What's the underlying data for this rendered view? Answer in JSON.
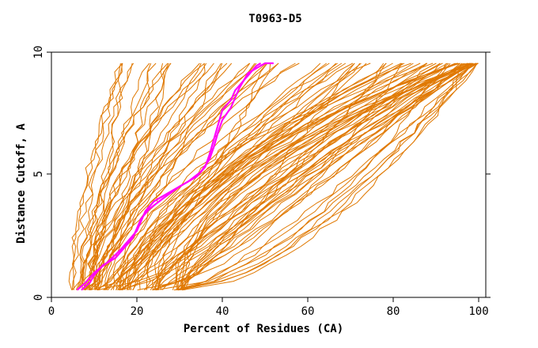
{
  "chart_data": {
    "type": "line",
    "title": "T0963-D5",
    "xlabel": "Percent of Residues (CA)",
    "ylabel": "Distance Cutoff, A",
    "xlim": [
      0,
      102
    ],
    "ylim": [
      0,
      10
    ],
    "xticks": [
      0,
      20,
      40,
      60,
      80,
      100
    ],
    "yticks": [
      0,
      5,
      10
    ],
    "grid": false,
    "colors": {
      "background_curves": "#e07800",
      "highlight": "#ff00ff"
    },
    "highlight_series": [
      {
        "x": [
          7,
          9,
          10,
          12,
          15,
          17,
          19,
          20,
          21,
          23,
          26,
          30,
          34,
          36,
          37,
          38,
          39,
          40,
          42,
          43,
          45,
          46,
          48,
          50,
          52
        ],
        "y": [
          0.3,
          0.6,
          0.9,
          1.3,
          1.6,
          2.0,
          2.4,
          2.8,
          3.2,
          3.6,
          4.0,
          4.5,
          4.9,
          5.3,
          5.8,
          6.4,
          7.0,
          7.6,
          8.0,
          8.4,
          8.8,
          9.1,
          9.3,
          9.5,
          9.5
        ]
      },
      {
        "x": [
          6,
          8,
          10,
          13,
          16,
          18,
          20,
          21,
          22,
          24,
          28,
          32,
          35,
          37,
          38,
          39,
          40,
          42,
          43,
          44,
          45,
          46,
          47,
          48,
          49
        ],
        "y": [
          0.3,
          0.6,
          1.0,
          1.4,
          1.9,
          2.3,
          2.7,
          3.1,
          3.5,
          3.9,
          4.3,
          4.7,
          5.1,
          5.6,
          6.1,
          6.7,
          7.2,
          7.7,
          8.1,
          8.5,
          8.8,
          9.0,
          9.2,
          9.4,
          9.5
        ]
      }
    ],
    "families": [
      {
        "x_at_0": 6,
        "x_at_max": 16,
        "count": 6,
        "spread": 3
      },
      {
        "x_at_0": 8,
        "x_at_max": 25,
        "count": 8,
        "spread": 4
      },
      {
        "x_at_0": 9,
        "x_at_max": 38,
        "count": 10,
        "spread": 5
      },
      {
        "x_at_0": 11,
        "x_at_max": 52,
        "count": 12,
        "spread": 6
      },
      {
        "x_at_0": 14,
        "x_at_max": 68,
        "count": 14,
        "spread": 7
      },
      {
        "x_at_0": 18,
        "x_at_max": 84,
        "count": 16,
        "spread": 6
      },
      {
        "x_at_0": 24,
        "x_at_max": 95,
        "count": 18,
        "spread": 4
      },
      {
        "x_at_0": 30,
        "x_at_max": 99,
        "count": 22,
        "spread": 2
      }
    ]
  }
}
